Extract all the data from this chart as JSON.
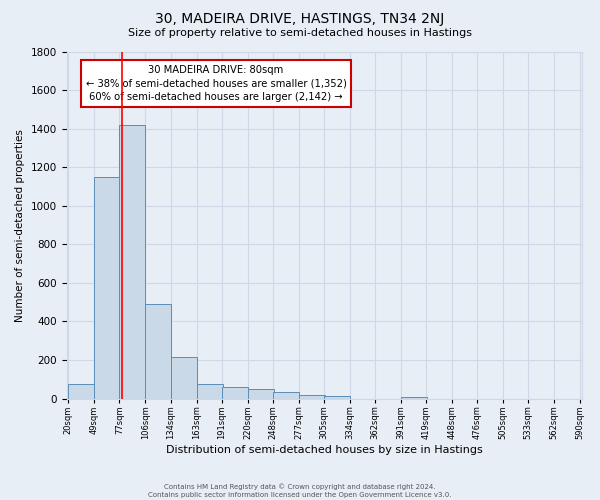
{
  "title": "30, MADEIRA DRIVE, HASTINGS, TN34 2NJ",
  "subtitle": "Size of property relative to semi-detached houses in Hastings",
  "xlabel": "Distribution of semi-detached houses by size in Hastings",
  "ylabel": "Number of semi-detached properties",
  "bar_left_edges": [
    20,
    49,
    77,
    106,
    134,
    163,
    191,
    220,
    248,
    277,
    305,
    334,
    362,
    391,
    419,
    448,
    476,
    505,
    533,
    562
  ],
  "bar_heights": [
    75,
    1150,
    1420,
    490,
    215,
    75,
    60,
    50,
    35,
    20,
    15,
    0,
    0,
    10,
    0,
    0,
    0,
    0,
    0,
    0
  ],
  "bin_width": 29,
  "bar_color": "#c9d9e8",
  "bar_edge_color": "#5b8db8",
  "red_line_x": 80,
  "annotation_title": "30 MADEIRA DRIVE: 80sqm",
  "annotation_line1": "← 38% of semi-detached houses are smaller (1,352)",
  "annotation_line2": "60% of semi-detached houses are larger (2,142) →",
  "annotation_box_color": "#ffffff",
  "annotation_box_edge_color": "#cc0000",
  "ylim": [
    0,
    1800
  ],
  "yticks": [
    0,
    200,
    400,
    600,
    800,
    1000,
    1200,
    1400,
    1600,
    1800
  ],
  "xtick_labels": [
    "20sqm",
    "49sqm",
    "77sqm",
    "106sqm",
    "134sqm",
    "163sqm",
    "191sqm",
    "220sqm",
    "248sqm",
    "277sqm",
    "305sqm",
    "334sqm",
    "362sqm",
    "391sqm",
    "419sqm",
    "448sqm",
    "476sqm",
    "505sqm",
    "533sqm",
    "562sqm",
    "590sqm"
  ],
  "grid_color": "#d0d8e8",
  "bg_color": "#e8eef5",
  "footer1": "Contains HM Land Registry data © Crown copyright and database right 2024.",
  "footer2": "Contains public sector information licensed under the Open Government Licence v3.0."
}
